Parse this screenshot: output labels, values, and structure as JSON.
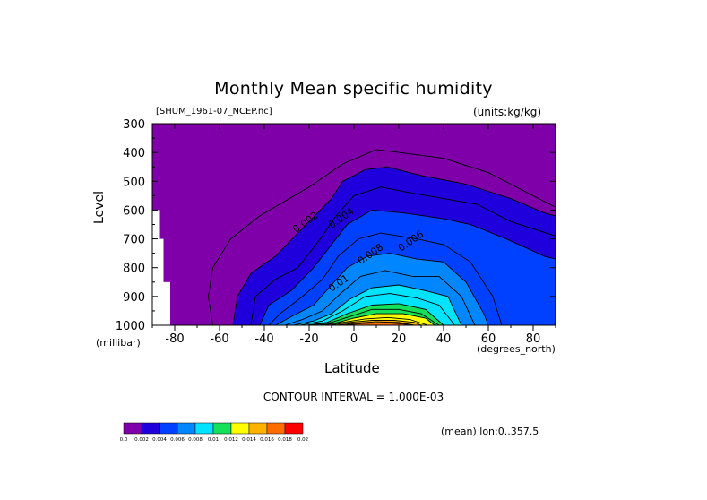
{
  "header": {
    "title": "Monthly Mean specific humidity",
    "source_file": "[SHUM_1961-07_NCEP.nc]",
    "units": "(units:kg/kg)"
  },
  "axes": {
    "ylabel": "Level",
    "y_unit": "(millibar)",
    "xlabel": "Latitude",
    "x_unit": "(degrees_north)"
  },
  "footer": {
    "contour_interval": "CONTOUR INTERVAL = 1.000E-03",
    "averaging": "(mean) lon:0..357.5"
  },
  "chart_data": {
    "type": "contour",
    "title": "Monthly Mean specific humidity",
    "variable": "specific humidity",
    "units": "kg/kg",
    "xlabel": "Latitude",
    "ylabel": "Level",
    "x_range": [
      -90,
      90
    ],
    "y_range": [
      1000,
      300
    ],
    "x_ticks": [
      -80,
      -60,
      -40,
      -20,
      0,
      20,
      40,
      60,
      80
    ],
    "y_ticks": [
      300,
      400,
      500,
      600,
      700,
      800,
      900,
      1000
    ],
    "contour_interval": 0.001,
    "contour_labels": [
      {
        "text": "0.002",
        "lat": -26,
        "level": 680
      },
      {
        "text": "0.004",
        "lat": -10,
        "level": 665
      },
      {
        "text": "0.006",
        "lat": 21,
        "level": 745
      },
      {
        "text": "0.008",
        "lat": 3,
        "level": 790
      },
      {
        "text": "0.01",
        "lat": -10,
        "level": 885
      }
    ],
    "missing_data": [
      {
        "lat_from": -90,
        "lat_to": -87,
        "level_above": 600
      },
      {
        "lat_from": -87,
        "lat_to": -85,
        "level_above": 700
      },
      {
        "lat_from": -85,
        "lat_to": -82,
        "level_above": 850
      }
    ],
    "colorbar": {
      "labels": [
        "0.0",
        "0.002",
        "0.004",
        "0.006",
        "0.008",
        "0.01",
        "0.012",
        "0.014",
        "0.016",
        "0.018",
        "0.02"
      ],
      "colors": [
        "#7f00a9",
        "#1f00dc",
        "#0041ff",
        "#0086ff",
        "#00e3ff",
        "#14e05a",
        "#ffff00",
        "#ffb300",
        "#ff6d00",
        "#ff0000"
      ]
    },
    "contours": [
      {
        "value": 0.001,
        "points": [
          [
            -63,
            1000
          ],
          [
            -65,
            900
          ],
          [
            -63,
            800
          ],
          [
            -55,
            700
          ],
          [
            -42,
            620
          ],
          [
            -20,
            520
          ],
          [
            -5,
            440
          ],
          [
            10,
            390
          ],
          [
            20,
            400
          ],
          [
            40,
            420
          ],
          [
            60,
            470
          ],
          [
            80,
            550
          ],
          [
            90,
            590
          ]
        ]
      },
      {
        "value": 0.002,
        "points": [
          [
            -54,
            1000
          ],
          [
            -52,
            900
          ],
          [
            -46,
            820
          ],
          [
            -35,
            760
          ],
          [
            -20,
            640
          ],
          [
            -10,
            560
          ],
          [
            -5,
            500
          ],
          [
            5,
            460
          ],
          [
            15,
            450
          ],
          [
            30,
            480
          ],
          [
            50,
            510
          ],
          [
            70,
            560
          ],
          [
            85,
            610
          ],
          [
            90,
            620
          ]
        ]
      },
      {
        "value": 0.003,
        "points": [
          [
            -46,
            1000
          ],
          [
            -44,
            900
          ],
          [
            -35,
            840
          ],
          [
            -25,
            800
          ],
          [
            -15,
            700
          ],
          [
            -8,
            620
          ],
          [
            0,
            550
          ],
          [
            12,
            520
          ],
          [
            25,
            540
          ],
          [
            40,
            560
          ],
          [
            55,
            580
          ],
          [
            70,
            640
          ],
          [
            90,
            690
          ]
        ]
      },
      {
        "value": 0.004,
        "points": [
          [
            -42,
            1000
          ],
          [
            -38,
            930
          ],
          [
            -28,
            880
          ],
          [
            -18,
            800
          ],
          [
            -10,
            720
          ],
          [
            -3,
            650
          ],
          [
            8,
            600
          ],
          [
            22,
            610
          ],
          [
            40,
            630
          ],
          [
            52,
            650
          ],
          [
            68,
            700
          ],
          [
            85,
            760
          ],
          [
            90,
            770
          ]
        ]
      },
      {
        "value": 0.005,
        "points": [
          [
            -38,
            1000
          ],
          [
            -33,
            960
          ],
          [
            -23,
            900
          ],
          [
            -14,
            840
          ],
          [
            -7,
            760
          ],
          [
            2,
            700
          ],
          [
            12,
            680
          ],
          [
            28,
            700
          ],
          [
            40,
            720
          ],
          [
            52,
            780
          ],
          [
            62,
            900
          ],
          [
            66,
            1000
          ]
        ]
      },
      {
        "value": 0.006,
        "points": [
          [
            -35,
            1000
          ],
          [
            -28,
            970
          ],
          [
            -18,
            930
          ],
          [
            -10,
            860
          ],
          [
            -3,
            800
          ],
          [
            6,
            760
          ],
          [
            16,
            750
          ],
          [
            28,
            770
          ],
          [
            40,
            780
          ],
          [
            50,
            850
          ],
          [
            58,
            960
          ],
          [
            60,
            1000
          ]
        ]
      },
      {
        "value": 0.007,
        "points": [
          [
            -31,
            1000
          ],
          [
            -23,
            980
          ],
          [
            -14,
            950
          ],
          [
            -6,
            890
          ],
          [
            3,
            830
          ],
          [
            14,
            810
          ],
          [
            26,
            830
          ],
          [
            38,
            830
          ],
          [
            48,
            900
          ],
          [
            54,
            1000
          ]
        ]
      },
      {
        "value": 0.008,
        "points": [
          [
            -27,
            1000
          ],
          [
            -18,
            985
          ],
          [
            -10,
            960
          ],
          [
            -2,
            910
          ],
          [
            8,
            870
          ],
          [
            20,
            860
          ],
          [
            32,
            880
          ],
          [
            42,
            900
          ],
          [
            48,
            1000
          ]
        ]
      },
      {
        "value": 0.009,
        "points": [
          [
            -24,
            1000
          ],
          [
            -14,
            985
          ],
          [
            -5,
            950
          ],
          [
            5,
            900
          ],
          [
            16,
            890
          ],
          [
            28,
            905
          ],
          [
            38,
            930
          ],
          [
            45,
            1000
          ]
        ]
      },
      {
        "value": 0.01,
        "points": [
          [
            -21,
            1000
          ],
          [
            -12,
            990
          ],
          [
            -3,
            960
          ],
          [
            8,
            930
          ],
          [
            20,
            925
          ],
          [
            32,
            945
          ],
          [
            40,
            1000
          ]
        ]
      },
      {
        "value": 0.011,
        "points": [
          [
            -19,
            1000
          ],
          [
            -10,
            990
          ],
          [
            -2,
            970
          ],
          [
            8,
            945
          ],
          [
            20,
            945
          ],
          [
            30,
            960
          ],
          [
            38,
            1000
          ]
        ]
      },
      {
        "value": 0.012,
        "points": [
          [
            -16,
            1000
          ],
          [
            -8,
            992
          ],
          [
            0,
            975
          ],
          [
            10,
            960
          ],
          [
            22,
            960
          ],
          [
            32,
            975
          ],
          [
            36,
            1000
          ]
        ]
      },
      {
        "value": 0.013,
        "points": [
          [
            -14,
            1000
          ],
          [
            -5,
            990
          ],
          [
            5,
            978
          ],
          [
            15,
            973
          ],
          [
            25,
            980
          ],
          [
            33,
            1000
          ]
        ]
      },
      {
        "value": 0.014,
        "points": [
          [
            -11,
            1000
          ],
          [
            -2,
            990
          ],
          [
            8,
            983
          ],
          [
            18,
            983
          ],
          [
            27,
            990
          ],
          [
            30,
            1000
          ]
        ]
      },
      {
        "value": 0.015,
        "points": [
          [
            -8,
            1000
          ],
          [
            0,
            993
          ],
          [
            10,
            988
          ],
          [
            20,
            990
          ],
          [
            27,
            1000
          ]
        ]
      },
      {
        "value": 0.016,
        "points": [
          [
            -5,
            1000
          ],
          [
            4,
            994
          ],
          [
            14,
            991
          ],
          [
            22,
            996
          ],
          [
            25,
            1000
          ]
        ]
      }
    ]
  }
}
